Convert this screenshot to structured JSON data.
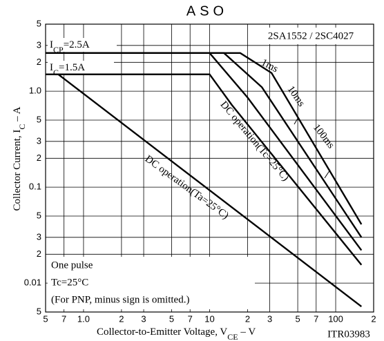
{
  "chart_data": {
    "type": "line",
    "title": "ASO",
    "part_number": "2SA1552 / 2SC4027",
    "code": "ITR03983",
    "x_label": [
      "Collector-to-Emitter Voltage, V",
      "CE",
      "  –  V"
    ],
    "y_label": [
      "Collector Current, I",
      "C",
      "  –  A"
    ],
    "icp_label": [
      "I",
      "CP",
      "=2.5A"
    ],
    "ic_label": [
      "I",
      "C",
      "=1.5A"
    ],
    "notes": [
      "One pulse",
      "Tc=25°C",
      "(For PNP, minus sign is omitted.)"
    ],
    "log_x": true,
    "log_y": true,
    "grid": true,
    "xlim": [
      0.5,
      200
    ],
    "ylim": [
      0.005,
      5
    ],
    "xticks": [
      {
        "value": 0.5,
        "label": "5"
      },
      {
        "value": 0.7,
        "label": "7"
      },
      {
        "value": 1,
        "label": "1.0"
      },
      {
        "value": 2,
        "label": "2"
      },
      {
        "value": 3,
        "label": "3"
      },
      {
        "value": 5,
        "label": "5"
      },
      {
        "value": 7,
        "label": "7"
      },
      10,
      {
        "value": 20,
        "label": "2"
      },
      {
        "value": 30,
        "label": "3"
      },
      {
        "value": 50,
        "label": "5"
      },
      {
        "value": 70,
        "label": "7"
      },
      100,
      {
        "value": 200,
        "label": "2"
      }
    ],
    "yticks": [
      5,
      3,
      2,
      {
        "value": 1,
        "label": "1.0"
      },
      {
        "value": 0.5,
        "label": "5"
      },
      {
        "value": 0.3,
        "label": "3"
      },
      {
        "value": 0.2,
        "label": "2"
      },
      0.1,
      {
        "value": 0.05,
        "label": "5"
      },
      {
        "value": 0.03,
        "label": "3"
      },
      {
        "value": 0.02,
        "label": "2"
      },
      0.01,
      {
        "value": 0.005,
        "label": "5"
      }
    ],
    "series": [
      {
        "name": "1ms",
        "color": "#000000",
        "x": [
          0.5,
          17.5,
          31,
          160
        ],
        "values": [
          2.5,
          2.5,
          1.55,
          0.041
        ]
      },
      {
        "name": "10ms",
        "color": "#000000",
        "x": [
          0.5,
          13,
          26,
          160
        ],
        "values": [
          2.5,
          2.5,
          1.1,
          0.03
        ]
      },
      {
        "name": "100ms",
        "color": "#000000",
        "x": [
          0.5,
          10,
          20,
          160
        ],
        "values": [
          2.5,
          2.5,
          0.86,
          0.022
        ]
      },
      {
        "name": "DC operation(Tc=25°C)",
        "color": "#000000",
        "x": [
          0.5,
          10,
          15,
          160
        ],
        "values": [
          1.5,
          1.5,
          0.72,
          0.0155
        ]
      },
      {
        "name": "DC operation(Ta=25°C)",
        "color": "#000000",
        "x": [
          0.63,
          160
        ],
        "values": [
          1.5,
          0.0057
        ]
      }
    ]
  }
}
